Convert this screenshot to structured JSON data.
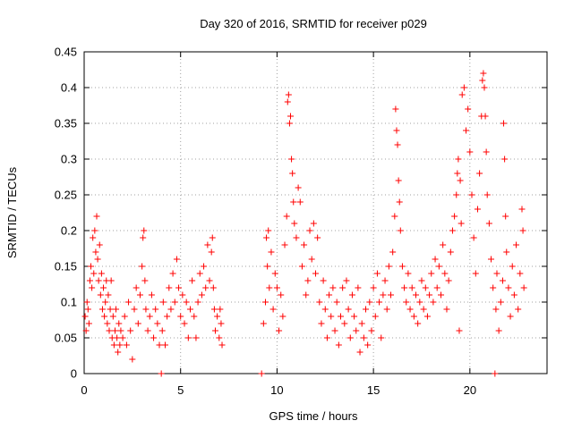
{
  "chart_data": {
    "type": "scatter",
    "title": "Day 320 of 2016, SRMTID for receiver p029",
    "xlabel": "GPS time / hours",
    "ylabel": "SRMTID / TECUs",
    "xlim": [
      0,
      24
    ],
    "ylim": [
      0,
      0.45
    ],
    "xticks": [
      0,
      5,
      10,
      15,
      20
    ],
    "yticks": [
      0,
      0.05,
      0.1,
      0.15,
      0.2,
      0.25,
      0.3,
      0.35,
      0.4,
      0.45
    ],
    "xtick_labels": [
      "0",
      "5",
      "10",
      "15",
      "20"
    ],
    "ytick_labels": [
      "0",
      "0.05",
      "0.1",
      "0.15",
      "0.2",
      "0.25",
      "0.3",
      "0.35",
      "0.4",
      "0.45"
    ],
    "grid": true,
    "marker": "+",
    "color": "#ff0000",
    "series": [
      {
        "name": "SRMTID",
        "points": [
          [
            0.05,
            0.08
          ],
          [
            0.1,
            0.06
          ],
          [
            0.15,
            0.1
          ],
          [
            0.2,
            0.09
          ],
          [
            0.25,
            0.07
          ],
          [
            0.3,
            0.13
          ],
          [
            0.35,
            0.15
          ],
          [
            0.4,
            0.12
          ],
          [
            0.45,
            0.19
          ],
          [
            0.5,
            0.14
          ],
          [
            0.55,
            0.2
          ],
          [
            0.6,
            0.17
          ],
          [
            0.65,
            0.22
          ],
          [
            0.7,
            0.16
          ],
          [
            0.75,
            0.13
          ],
          [
            0.8,
            0.18
          ],
          [
            0.85,
            0.11
          ],
          [
            0.9,
            0.14
          ],
          [
            0.95,
            0.09
          ],
          [
            1.0,
            0.12
          ],
          [
            1.05,
            0.08
          ],
          [
            1.1,
            0.1
          ],
          [
            1.15,
            0.13
          ],
          [
            1.2,
            0.07
          ],
          [
            1.25,
            0.11
          ],
          [
            1.3,
            0.06
          ],
          [
            1.35,
            0.09
          ],
          [
            1.4,
            0.13
          ],
          [
            1.45,
            0.05
          ],
          [
            1.5,
            0.08
          ],
          [
            1.55,
            0.04
          ],
          [
            1.6,
            0.06
          ],
          [
            1.65,
            0.09
          ],
          [
            1.7,
            0.05
          ],
          [
            1.75,
            0.03
          ],
          [
            1.8,
            0.07
          ],
          [
            1.85,
            0.04
          ],
          [
            1.9,
            0.06
          ],
          [
            2.0,
            0.05
          ],
          [
            2.1,
            0.08
          ],
          [
            2.2,
            0.04
          ],
          [
            2.3,
            0.1
          ],
          [
            2.4,
            0.06
          ],
          [
            2.5,
            0.02
          ],
          [
            2.6,
            0.09
          ],
          [
            2.7,
            0.12
          ],
          [
            2.8,
            0.07
          ],
          [
            2.9,
            0.11
          ],
          [
            3.0,
            0.15
          ],
          [
            3.05,
            0.19
          ],
          [
            3.1,
            0.2
          ],
          [
            3.15,
            0.13
          ],
          [
            3.2,
            0.09
          ],
          [
            3.3,
            0.06
          ],
          [
            3.4,
            0.08
          ],
          [
            3.5,
            0.11
          ],
          [
            3.6,
            0.05
          ],
          [
            3.7,
            0.09
          ],
          [
            3.8,
            0.07
          ],
          [
            3.9,
            0.04
          ],
          [
            4.0,
            0.0
          ],
          [
            4.05,
            0.06
          ],
          [
            4.1,
            0.1
          ],
          [
            4.2,
            0.04
          ],
          [
            4.3,
            0.08
          ],
          [
            4.4,
            0.12
          ],
          [
            4.5,
            0.09
          ],
          [
            4.6,
            0.14
          ],
          [
            4.7,
            0.1
          ],
          [
            4.8,
            0.16
          ],
          [
            4.9,
            0.12
          ],
          [
            5.0,
            0.08
          ],
          [
            5.1,
            0.11
          ],
          [
            5.2,
            0.07
          ],
          [
            5.3,
            0.1
          ],
          [
            5.4,
            0.05
          ],
          [
            5.5,
            0.09
          ],
          [
            5.6,
            0.13
          ],
          [
            5.7,
            0.08
          ],
          [
            5.8,
            0.05
          ],
          [
            5.9,
            0.1
          ],
          [
            6.0,
            0.14
          ],
          [
            6.1,
            0.11
          ],
          [
            6.2,
            0.15
          ],
          [
            6.3,
            0.12
          ],
          [
            6.4,
            0.18
          ],
          [
            6.5,
            0.13
          ],
          [
            6.6,
            0.17
          ],
          [
            6.65,
            0.19
          ],
          [
            6.7,
            0.12
          ],
          [
            6.75,
            0.09
          ],
          [
            6.8,
            0.06
          ],
          [
            6.9,
            0.08
          ],
          [
            7.0,
            0.05
          ],
          [
            7.05,
            0.09
          ],
          [
            7.1,
            0.07
          ],
          [
            7.15,
            0.04
          ],
          [
            9.2,
            0.0
          ],
          [
            9.3,
            0.07
          ],
          [
            9.4,
            0.1
          ],
          [
            9.45,
            0.19
          ],
          [
            9.5,
            0.15
          ],
          [
            9.55,
            0.2
          ],
          [
            9.6,
            0.12
          ],
          [
            9.7,
            0.17
          ],
          [
            9.8,
            0.09
          ],
          [
            9.9,
            0.14
          ],
          [
            10.0,
            0.12
          ],
          [
            10.1,
            0.06
          ],
          [
            10.2,
            0.11
          ],
          [
            10.3,
            0.08
          ],
          [
            10.4,
            0.18
          ],
          [
            10.5,
            0.22
          ],
          [
            10.55,
            0.38
          ],
          [
            10.6,
            0.39
          ],
          [
            10.65,
            0.35
          ],
          [
            10.7,
            0.36
          ],
          [
            10.75,
            0.3
          ],
          [
            10.8,
            0.28
          ],
          [
            10.85,
            0.24
          ],
          [
            10.9,
            0.21
          ],
          [
            11.0,
            0.19
          ],
          [
            11.1,
            0.26
          ],
          [
            11.2,
            0.24
          ],
          [
            11.3,
            0.15
          ],
          [
            11.4,
            0.18
          ],
          [
            11.5,
            0.11
          ],
          [
            11.6,
            0.13
          ],
          [
            11.7,
            0.2
          ],
          [
            11.8,
            0.16
          ],
          [
            11.9,
            0.21
          ],
          [
            12.0,
            0.14
          ],
          [
            12.1,
            0.19
          ],
          [
            12.2,
            0.1
          ],
          [
            12.3,
            0.07
          ],
          [
            12.4,
            0.13
          ],
          [
            12.5,
            0.09
          ],
          [
            12.6,
            0.05
          ],
          [
            12.7,
            0.11
          ],
          [
            12.8,
            0.08
          ],
          [
            12.9,
            0.12
          ],
          [
            13.0,
            0.06
          ],
          [
            13.1,
            0.1
          ],
          [
            13.2,
            0.04
          ],
          [
            13.3,
            0.08
          ],
          [
            13.4,
            0.12
          ],
          [
            13.5,
            0.07
          ],
          [
            13.6,
            0.13
          ],
          [
            13.7,
            0.09
          ],
          [
            13.8,
            0.05
          ],
          [
            13.9,
            0.11
          ],
          [
            14.0,
            0.08
          ],
          [
            14.1,
            0.06
          ],
          [
            14.2,
            0.12
          ],
          [
            14.3,
            0.03
          ],
          [
            14.4,
            0.07
          ],
          [
            14.5,
            0.05
          ],
          [
            14.6,
            0.09
          ],
          [
            14.7,
            0.04
          ],
          [
            14.8,
            0.1
          ],
          [
            14.9,
            0.06
          ],
          [
            15.0,
            0.12
          ],
          [
            15.1,
            0.08
          ],
          [
            15.2,
            0.14
          ],
          [
            15.3,
            0.1
          ],
          [
            15.4,
            0.05
          ],
          [
            15.5,
            0.11
          ],
          [
            15.6,
            0.13
          ],
          [
            15.7,
            0.09
          ],
          [
            15.8,
            0.15
          ],
          [
            15.9,
            0.11
          ],
          [
            16.0,
            0.17
          ],
          [
            16.1,
            0.22
          ],
          [
            16.15,
            0.37
          ],
          [
            16.2,
            0.34
          ],
          [
            16.25,
            0.32
          ],
          [
            16.3,
            0.27
          ],
          [
            16.35,
            0.24
          ],
          [
            16.4,
            0.2
          ],
          [
            16.5,
            0.15
          ],
          [
            16.6,
            0.12
          ],
          [
            16.7,
            0.1
          ],
          [
            16.8,
            0.14
          ],
          [
            16.9,
            0.09
          ],
          [
            17.0,
            0.12
          ],
          [
            17.1,
            0.08
          ],
          [
            17.2,
            0.11
          ],
          [
            17.3,
            0.07
          ],
          [
            17.4,
            0.1
          ],
          [
            17.5,
            0.13
          ],
          [
            17.6,
            0.09
          ],
          [
            17.7,
            0.12
          ],
          [
            17.8,
            0.08
          ],
          [
            17.9,
            0.11
          ],
          [
            18.0,
            0.14
          ],
          [
            18.1,
            0.1
          ],
          [
            18.2,
            0.16
          ],
          [
            18.3,
            0.12
          ],
          [
            18.4,
            0.15
          ],
          [
            18.5,
            0.11
          ],
          [
            18.6,
            0.18
          ],
          [
            18.7,
            0.14
          ],
          [
            18.8,
            0.09
          ],
          [
            18.9,
            0.13
          ],
          [
            19.0,
            0.17
          ],
          [
            19.1,
            0.2
          ],
          [
            19.2,
            0.22
          ],
          [
            19.3,
            0.25
          ],
          [
            19.35,
            0.28
          ],
          [
            19.4,
            0.3
          ],
          [
            19.45,
            0.06
          ],
          [
            19.5,
            0.27
          ],
          [
            19.55,
            0.21
          ],
          [
            19.6,
            0.39
          ],
          [
            19.7,
            0.4
          ],
          [
            19.8,
            0.34
          ],
          [
            19.9,
            0.37
          ],
          [
            20.0,
            0.31
          ],
          [
            20.1,
            0.25
          ],
          [
            20.2,
            0.19
          ],
          [
            20.3,
            0.14
          ],
          [
            20.4,
            0.23
          ],
          [
            20.5,
            0.28
          ],
          [
            20.6,
            0.36
          ],
          [
            20.65,
            0.41
          ],
          [
            20.7,
            0.42
          ],
          [
            20.75,
            0.4
          ],
          [
            20.8,
            0.36
          ],
          [
            20.85,
            0.31
          ],
          [
            20.9,
            0.25
          ],
          [
            21.0,
            0.21
          ],
          [
            21.1,
            0.16
          ],
          [
            21.2,
            0.12
          ],
          [
            21.3,
            0.0
          ],
          [
            21.35,
            0.09
          ],
          [
            21.4,
            0.14
          ],
          [
            21.5,
            0.06
          ],
          [
            21.6,
            0.1
          ],
          [
            21.7,
            0.13
          ],
          [
            21.75,
            0.35
          ],
          [
            21.8,
            0.3
          ],
          [
            21.85,
            0.22
          ],
          [
            21.9,
            0.17
          ],
          [
            22.0,
            0.12
          ],
          [
            22.1,
            0.08
          ],
          [
            22.2,
            0.15
          ],
          [
            22.3,
            0.11
          ],
          [
            22.4,
            0.18
          ],
          [
            22.5,
            0.09
          ],
          [
            22.6,
            0.14
          ],
          [
            22.7,
            0.23
          ],
          [
            22.75,
            0.2
          ],
          [
            22.8,
            0.12
          ]
        ]
      }
    ]
  }
}
